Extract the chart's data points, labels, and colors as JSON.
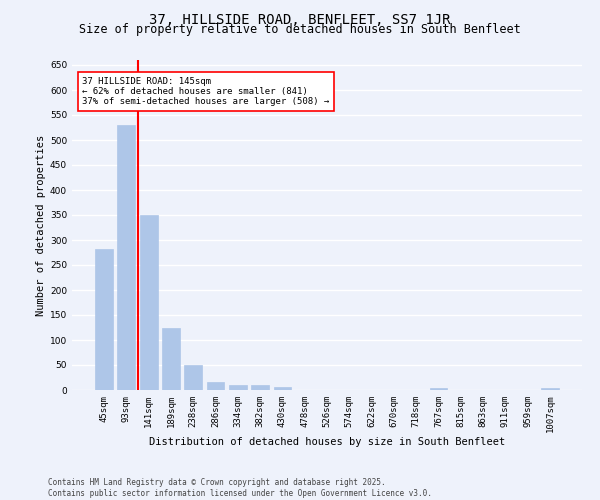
{
  "title": "37, HILLSIDE ROAD, BENFLEET, SS7 1JR",
  "subtitle": "Size of property relative to detached houses in South Benfleet",
  "xlabel": "Distribution of detached houses by size in South Benfleet",
  "ylabel": "Number of detached properties",
  "categories": [
    "45sqm",
    "93sqm",
    "141sqm",
    "189sqm",
    "238sqm",
    "286sqm",
    "334sqm",
    "382sqm",
    "430sqm",
    "478sqm",
    "526sqm",
    "574sqm",
    "622sqm",
    "670sqm",
    "718sqm",
    "767sqm",
    "815sqm",
    "863sqm",
    "911sqm",
    "959sqm",
    "1007sqm"
  ],
  "values": [
    283,
    530,
    350,
    125,
    50,
    16,
    11,
    10,
    7,
    0,
    0,
    0,
    0,
    0,
    0,
    5,
    0,
    0,
    0,
    0,
    5
  ],
  "bar_color": "#aec6e8",
  "bar_edgecolor": "#aec6e8",
  "vline_color": "red",
  "vline_x_idx": 2,
  "annotation_text": "37 HILLSIDE ROAD: 145sqm\n← 62% of detached houses are smaller (841)\n37% of semi-detached houses are larger (508) →",
  "annotation_box_color": "white",
  "annotation_box_edgecolor": "red",
  "ylim": [
    0,
    660
  ],
  "yticks": [
    0,
    50,
    100,
    150,
    200,
    250,
    300,
    350,
    400,
    450,
    500,
    550,
    600,
    650
  ],
  "background_color": "#eef2fb",
  "grid_color": "white",
  "footer": "Contains HM Land Registry data © Crown copyright and database right 2025.\nContains public sector information licensed under the Open Government Licence v3.0.",
  "title_fontsize": 10,
  "subtitle_fontsize": 8.5,
  "xlabel_fontsize": 7.5,
  "ylabel_fontsize": 7.5,
  "tick_fontsize": 6.5,
  "annotation_fontsize": 6.5,
  "footer_fontsize": 5.5
}
